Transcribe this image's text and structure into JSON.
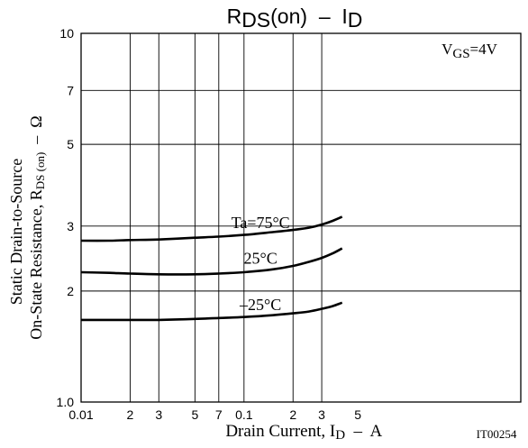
{
  "chart_data": {
    "type": "line",
    "title": {
      "main": "R",
      "sub": "DS",
      "mid": "(on)  –  I",
      "sub2": "D"
    },
    "xlabel": {
      "prefix": "Drain Current, I",
      "sub": "D",
      "suffix": "  –  A"
    },
    "ylabel": {
      "line1": "Static Drain-to-Source",
      "line2_prefix": "On-State Resistance, R",
      "line2_sub": "DS (on)",
      "line2_suffix": "  –  Ω"
    },
    "annotation": {
      "prefix": "V",
      "sub": "GS",
      "suffix": "=4V"
    },
    "figure_id": "IT00254",
    "x_scale": "log",
    "y_scale": "log",
    "xlim": [
      0.01,
      5
    ],
    "ylim": [
      1.0,
      10
    ],
    "grid": true,
    "x_ticks": [
      {
        "value": 0.01,
        "label": "0.01"
      },
      {
        "value": 0.02,
        "label": "2"
      },
      {
        "value": 0.03,
        "label": "3"
      },
      {
        "value": 0.05,
        "label": "5"
      },
      {
        "value": 0.07,
        "label": "7"
      },
      {
        "value": 0.1,
        "label": "0.1"
      },
      {
        "value": 0.2,
        "label": "2"
      },
      {
        "value": 0.3,
        "label": "3"
      },
      {
        "value": 0.5,
        "label": "5"
      }
    ],
    "x_gridlines": [
      0.02,
      0.03,
      0.05,
      0.07,
      0.1,
      0.2,
      0.3
    ],
    "y_ticks": [
      {
        "value": 1.0,
        "label": "1.0"
      },
      {
        "value": 2,
        "label": "2"
      },
      {
        "value": 3,
        "label": "3"
      },
      {
        "value": 5,
        "label": "5"
      },
      {
        "value": 7,
        "label": "7"
      },
      {
        "value": 10,
        "label": "10"
      }
    ],
    "y_gridlines": [
      2,
      3,
      5,
      7
    ],
    "series": [
      {
        "name": "Ta=75°C",
        "x": [
          0.01,
          0.015,
          0.02,
          0.03,
          0.05,
          0.07,
          0.1,
          0.15,
          0.2,
          0.25,
          0.3,
          0.35,
          0.4
        ],
        "y": [
          2.74,
          2.74,
          2.75,
          2.76,
          2.79,
          2.81,
          2.84,
          2.89,
          2.93,
          2.97,
          3.03,
          3.1,
          3.18
        ]
      },
      {
        "name": "25°C",
        "x": [
          0.01,
          0.015,
          0.02,
          0.03,
          0.05,
          0.07,
          0.1,
          0.15,
          0.2,
          0.25,
          0.3,
          0.35,
          0.4
        ],
        "y": [
          2.25,
          2.24,
          2.23,
          2.22,
          2.22,
          2.23,
          2.25,
          2.29,
          2.34,
          2.4,
          2.46,
          2.53,
          2.61
        ]
      },
      {
        "name": "–25°C",
        "x": [
          0.01,
          0.015,
          0.02,
          0.03,
          0.05,
          0.07,
          0.1,
          0.15,
          0.2,
          0.25,
          0.3,
          0.35,
          0.4
        ],
        "y": [
          1.67,
          1.67,
          1.67,
          1.67,
          1.68,
          1.69,
          1.7,
          1.72,
          1.74,
          1.76,
          1.79,
          1.82,
          1.86
        ]
      }
    ]
  }
}
